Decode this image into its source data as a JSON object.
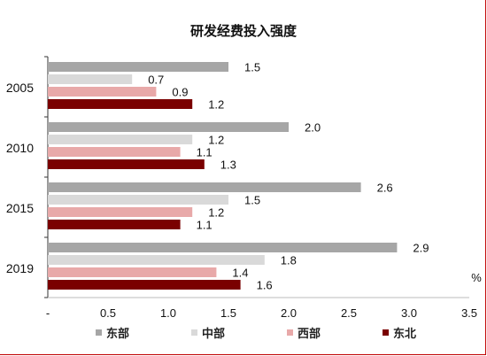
{
  "chart_data": {
    "type": "bar",
    "orientation": "horizontal",
    "title": "研发经费投入强度",
    "unit_label": "%",
    "categories": [
      "2005",
      "2010",
      "2015",
      "2019"
    ],
    "series": [
      {
        "name": "东部",
        "color": "#a6a6a6",
        "values": [
          1.5,
          2.0,
          2.6,
          2.9
        ]
      },
      {
        "name": "中部",
        "color": "#d9d9d9",
        "values": [
          0.7,
          1.2,
          1.5,
          1.8
        ]
      },
      {
        "name": "西部",
        "color": "#e8a9a9",
        "values": [
          0.9,
          1.1,
          1.2,
          1.4
        ]
      },
      {
        "name": "东北",
        "color": "#7a0000",
        "values": [
          1.2,
          1.3,
          1.1,
          1.6
        ]
      }
    ],
    "xlim": [
      0,
      3.5
    ],
    "x_ticks": [
      "-",
      "0.5",
      "1.0",
      "1.5",
      "2.0",
      "2.5",
      "3.0",
      "3.5"
    ],
    "grid": false,
    "legend_position": "bottom"
  }
}
